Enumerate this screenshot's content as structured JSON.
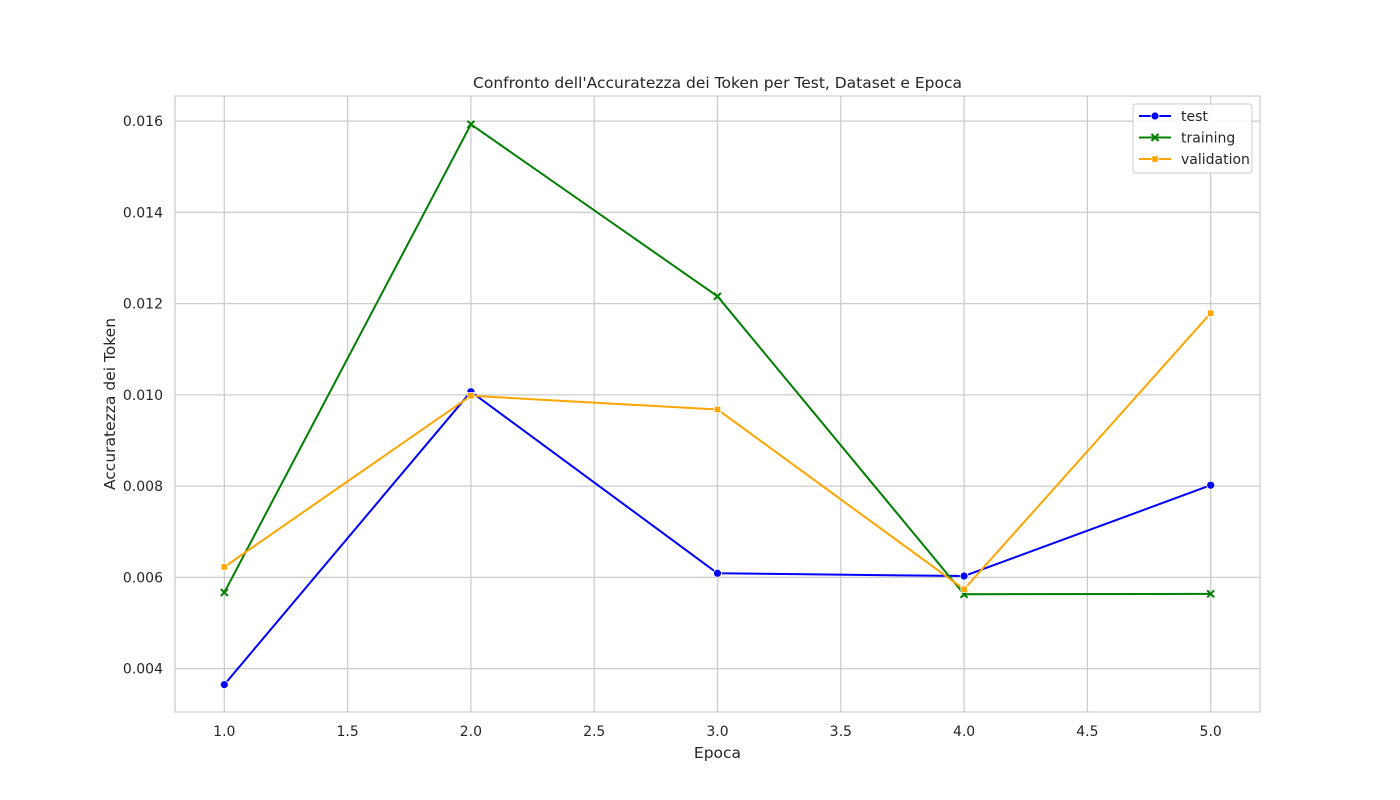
{
  "chart_data": {
    "type": "line",
    "title": "Confronto dell'Accuratezza dei Token per Test, Dataset e Epoca",
    "xlabel": "Epoca",
    "ylabel": "Accuratezza dei Token",
    "x": [
      1.0,
      2.0,
      3.0,
      4.0,
      5.0
    ],
    "xlim": [
      0.8,
      5.2
    ],
    "ylim": [
      0.00305,
      0.01655
    ],
    "xticks": [
      "1.0",
      "1.5",
      "2.0",
      "2.5",
      "3.0",
      "3.5",
      "4.0",
      "4.5",
      "5.0"
    ],
    "xtick_values": [
      1.0,
      1.5,
      2.0,
      2.5,
      3.0,
      3.5,
      4.0,
      4.5,
      5.0
    ],
    "yticks": [
      "0.004",
      "0.006",
      "0.008",
      "0.010",
      "0.012",
      "0.014",
      "0.016"
    ],
    "ytick_values": [
      0.004,
      0.006,
      0.008,
      0.01,
      0.012,
      0.014,
      0.016
    ],
    "grid": true,
    "legend_position": "top-right",
    "series": [
      {
        "name": "test",
        "color": "#0000ff",
        "marker": "circle",
        "values": [
          0.00365,
          0.01007,
          0.00609,
          0.00603,
          0.00802
        ]
      },
      {
        "name": "training",
        "color": "#008000",
        "marker": "x",
        "values": [
          0.00567,
          0.01593,
          0.01216,
          0.00563,
          0.00564
        ]
      },
      {
        "name": "validation",
        "color": "#ffa500",
        "marker": "square",
        "values": [
          0.00623,
          0.00998,
          0.00968,
          0.00574,
          0.01179
        ]
      }
    ]
  }
}
